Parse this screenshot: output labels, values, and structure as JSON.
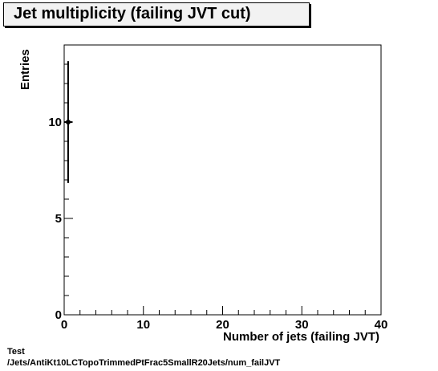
{
  "title": "Jet multiplicity (failing JVT cut)",
  "footer": {
    "line1": "Test",
    "line2": "/Jets/AntiKt10LCTopoTrimmedPtFrac5SmallR20Jets/num_failJVT"
  },
  "chart_data": {
    "type": "scatter",
    "title": "Jet multiplicity (failing JVT cut)",
    "xlabel": "Number of jets (failing JVT)",
    "ylabel": "Entries",
    "xlim": [
      0,
      40
    ],
    "ylim": [
      0,
      14
    ],
    "x_ticks": [
      0,
      10,
      20,
      30,
      40
    ],
    "y_ticks": [
      0,
      5,
      10
    ],
    "grid": false,
    "series": [
      {
        "points": [
          {
            "x": 0.5,
            "y": 10,
            "x_err": 0.5,
            "y_err": 3.16
          }
        ]
      }
    ]
  }
}
